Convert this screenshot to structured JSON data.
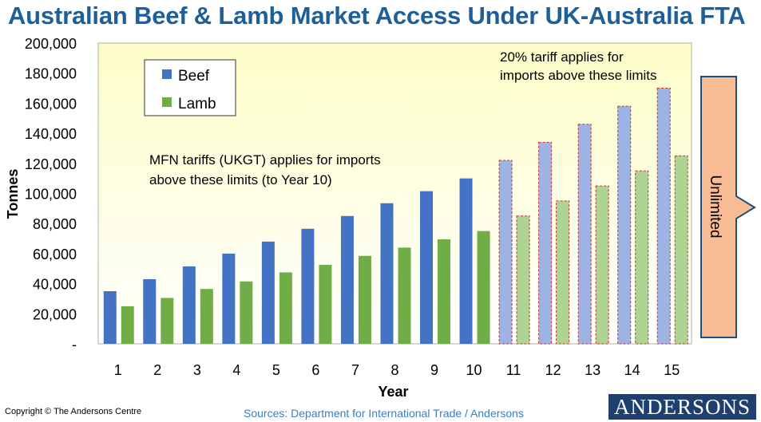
{
  "title": "Australian Beef & Lamb Market Access Under UK-Australia FTA",
  "footer": {
    "copyright": "Copyright © The Andersons Centre",
    "sources": "Sources: Department for International Trade / Andersons",
    "logo": "ANDERSONS"
  },
  "colors": {
    "beef": "#4472c4",
    "lamb": "#70ad47",
    "beef_light": "#9db3e3",
    "lamb_light": "#aed494",
    "plot_bg": "#ffffe6",
    "arrow_fill": "#f7bc94",
    "arrow_stroke": "#1f4e79",
    "dash": "#cc3333"
  },
  "chart_data": {
    "type": "bar",
    "title": "Australian Beef & Lamb Market Access Under UK-Australia FTA",
    "xlabel": "Year",
    "ylabel": "Tonnes",
    "ylim": [
      0,
      200000
    ],
    "yticks": [
      0,
      20000,
      40000,
      60000,
      80000,
      100000,
      120000,
      140000,
      160000,
      180000,
      200000
    ],
    "ytick_labels": [
      "-",
      "20,000",
      "40,000",
      "60,000",
      "80,000",
      "100,000",
      "120,000",
      "140,000",
      "160,000",
      "180,000",
      "200,000"
    ],
    "categories": [
      "1",
      "2",
      "3",
      "4",
      "5",
      "6",
      "7",
      "8",
      "9",
      "10",
      "11",
      "12",
      "13",
      "14",
      "15"
    ],
    "series": [
      {
        "name": "Beef",
        "values": [
          35000,
          43000,
          51500,
          60000,
          68000,
          76500,
          85000,
          93500,
          101500,
          110000,
          122000,
          134000,
          146000,
          158000,
          170000
        ]
      },
      {
        "name": "Lamb",
        "values": [
          25000,
          30500,
          36500,
          41500,
          47500,
          52500,
          58500,
          64000,
          69500,
          75000,
          85000,
          95000,
          105000,
          115000,
          125000
        ]
      }
    ],
    "legend": {
      "position": "top-left",
      "entries": [
        "Beef",
        "Lamb"
      ]
    },
    "annotations": [
      {
        "text_lines": [
          "MFN tariffs (UKGT) applies for imports",
          "above these limits (to Year 10)"
        ]
      },
      {
        "text_lines": [
          "20% tariff applies for",
          "imports above these limits"
        ]
      },
      {
        "text": "Unlimited"
      }
    ],
    "quota_phase_from_year": 11
  }
}
